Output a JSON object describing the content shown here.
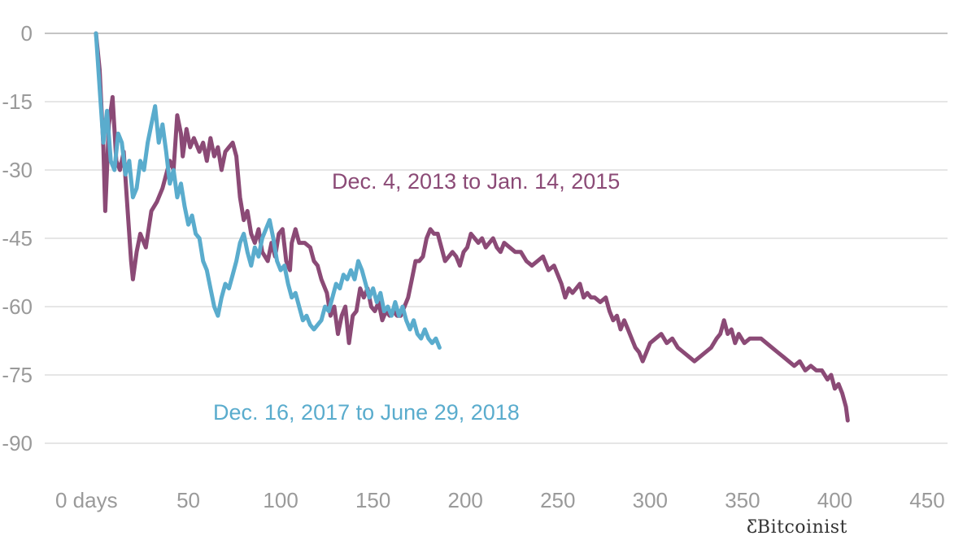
{
  "chart_data": {
    "type": "line",
    "xlim": [
      0,
      450
    ],
    "ylim": [
      -90,
      0
    ],
    "x_ticks": [
      0,
      50,
      100,
      150,
      200,
      250,
      300,
      350,
      400,
      450
    ],
    "x_tick_labels": [
      "0 days",
      "50",
      "100",
      "150",
      "200",
      "250",
      "300",
      "350",
      "400",
      "450"
    ],
    "y_ticks": [
      0,
      -15,
      -30,
      -45,
      -60,
      -75,
      -90
    ],
    "y_tick_labels": [
      "0",
      "-15",
      "-30",
      "-45",
      "-60",
      "-75",
      "-90"
    ],
    "grid": "horizontal",
    "series": [
      {
        "name": "Dec. 4, 2013 to Jan. 14, 2015",
        "color": "#8b4a76",
        "points": [
          [
            0,
            0
          ],
          [
            2,
            -8
          ],
          [
            4,
            -25
          ],
          [
            5,
            -39
          ],
          [
            7,
            -20
          ],
          [
            9,
            -14
          ],
          [
            11,
            -28
          ],
          [
            13,
            -30
          ],
          [
            15,
            -26
          ],
          [
            17,
            -38
          ],
          [
            19,
            -50
          ],
          [
            20,
            -54
          ],
          [
            22,
            -48
          ],
          [
            24,
            -44
          ],
          [
            27,
            -47
          ],
          [
            30,
            -39
          ],
          [
            33,
            -37
          ],
          [
            36,
            -34
          ],
          [
            38,
            -31
          ],
          [
            40,
            -28
          ],
          [
            42,
            -30
          ],
          [
            44,
            -18
          ],
          [
            46,
            -22
          ],
          [
            47,
            -27
          ],
          [
            49,
            -21
          ],
          [
            51,
            -25
          ],
          [
            53,
            -23
          ],
          [
            56,
            -26
          ],
          [
            58,
            -24
          ],
          [
            60,
            -28
          ],
          [
            62,
            -23
          ],
          [
            64,
            -27
          ],
          [
            66,
            -25
          ],
          [
            68,
            -30
          ],
          [
            70,
            -26
          ],
          [
            72,
            -25
          ],
          [
            74,
            -24
          ],
          [
            76,
            -27
          ],
          [
            78,
            -36
          ],
          [
            80,
            -41
          ],
          [
            82,
            -39
          ],
          [
            84,
            -44
          ],
          [
            86,
            -46
          ],
          [
            88,
            -43
          ],
          [
            90,
            -48
          ],
          [
            93,
            -50
          ],
          [
            95,
            -46
          ],
          [
            97,
            -49
          ],
          [
            99,
            -44
          ],
          [
            101,
            -43
          ],
          [
            103,
            -50
          ],
          [
            105,
            -52
          ],
          [
            106,
            -46
          ],
          [
            108,
            -43
          ],
          [
            110,
            -46
          ],
          [
            113,
            -46
          ],
          [
            116,
            -47
          ],
          [
            118,
            -50
          ],
          [
            120,
            -51
          ],
          [
            122,
            -54
          ],
          [
            125,
            -57
          ],
          [
            127,
            -62
          ],
          [
            129,
            -60
          ],
          [
            131,
            -66
          ],
          [
            133,
            -62
          ],
          [
            135,
            -60
          ],
          [
            137,
            -68
          ],
          [
            139,
            -62
          ],
          [
            141,
            -61
          ],
          [
            143,
            -56
          ],
          [
            145,
            -58
          ],
          [
            147,
            -56
          ],
          [
            149,
            -60
          ],
          [
            151,
            -61
          ],
          [
            153,
            -59
          ],
          [
            155,
            -63
          ],
          [
            157,
            -61
          ],
          [
            159,
            -62
          ],
          [
            161,
            -61
          ],
          [
            163,
            -62
          ],
          [
            165,
            -62
          ],
          [
            167,
            -60
          ],
          [
            169,
            -58
          ],
          [
            171,
            -54
          ],
          [
            173,
            -50
          ],
          [
            175,
            -50
          ],
          [
            177,
            -49
          ],
          [
            179,
            -45
          ],
          [
            181,
            -43
          ],
          [
            183,
            -44
          ],
          [
            185,
            -44
          ],
          [
            187,
            -47
          ],
          [
            189,
            -50
          ],
          [
            191,
            -49
          ],
          [
            193,
            -48
          ],
          [
            195,
            -49
          ],
          [
            197,
            -51
          ],
          [
            199,
            -48
          ],
          [
            201,
            -47
          ],
          [
            203,
            -44
          ],
          [
            205,
            -45
          ],
          [
            207,
            -46
          ],
          [
            209,
            -45
          ],
          [
            211,
            -47
          ],
          [
            213,
            -46
          ],
          [
            215,
            -45
          ],
          [
            217,
            -47
          ],
          [
            219,
            -48
          ],
          [
            221,
            -46
          ],
          [
            224,
            -47
          ],
          [
            227,
            -48
          ],
          [
            230,
            -48
          ],
          [
            233,
            -50
          ],
          [
            236,
            -51
          ],
          [
            239,
            -50
          ],
          [
            242,
            -49
          ],
          [
            245,
            -52
          ],
          [
            248,
            -51
          ],
          [
            250,
            -53
          ],
          [
            252,
            -55
          ],
          [
            254,
            -58
          ],
          [
            256,
            -56
          ],
          [
            258,
            -57
          ],
          [
            260,
            -56
          ],
          [
            262,
            -55
          ],
          [
            264,
            -58
          ],
          [
            266,
            -57
          ],
          [
            268,
            -58
          ],
          [
            270,
            -58
          ],
          [
            273,
            -59
          ],
          [
            276,
            -58
          ],
          [
            278,
            -61
          ],
          [
            280,
            -63
          ],
          [
            282,
            -62
          ],
          [
            284,
            -65
          ],
          [
            286,
            -63
          ],
          [
            288,
            -65
          ],
          [
            290,
            -67
          ],
          [
            292,
            -69
          ],
          [
            294,
            -70
          ],
          [
            296,
            -72
          ],
          [
            298,
            -70
          ],
          [
            300,
            -68
          ],
          [
            303,
            -67
          ],
          [
            306,
            -66
          ],
          [
            309,
            -68
          ],
          [
            312,
            -67
          ],
          [
            315,
            -69
          ],
          [
            318,
            -70
          ],
          [
            321,
            -71
          ],
          [
            324,
            -72
          ],
          [
            327,
            -71
          ],
          [
            330,
            -70
          ],
          [
            333,
            -69
          ],
          [
            336,
            -67
          ],
          [
            338,
            -66
          ],
          [
            340,
            -63
          ],
          [
            342,
            -66
          ],
          [
            344,
            -65
          ],
          [
            346,
            -68
          ],
          [
            348,
            -66
          ],
          [
            351,
            -68
          ],
          [
            354,
            -67
          ],
          [
            357,
            -67
          ],
          [
            360,
            -67
          ],
          [
            363,
            -68
          ],
          [
            366,
            -69
          ],
          [
            369,
            -70
          ],
          [
            372,
            -71
          ],
          [
            375,
            -72
          ],
          [
            378,
            -73
          ],
          [
            381,
            -72
          ],
          [
            384,
            -74
          ],
          [
            387,
            -73
          ],
          [
            390,
            -74
          ],
          [
            393,
            -74
          ],
          [
            396,
            -76
          ],
          [
            398,
            -75
          ],
          [
            400,
            -78
          ],
          [
            402,
            -77
          ],
          [
            404,
            -79
          ],
          [
            406,
            -82
          ],
          [
            407,
            -85
          ]
        ]
      },
      {
        "name": "Dec. 16, 2017 to June 29, 2018",
        "color": "#5aaccd",
        "points": [
          [
            0,
            0
          ],
          [
            2,
            -12
          ],
          [
            4,
            -24
          ],
          [
            6,
            -17
          ],
          [
            8,
            -28
          ],
          [
            10,
            -30
          ],
          [
            12,
            -22
          ],
          [
            14,
            -24
          ],
          [
            16,
            -31
          ],
          [
            18,
            -28
          ],
          [
            20,
            -36
          ],
          [
            22,
            -34
          ],
          [
            24,
            -28
          ],
          [
            26,
            -30
          ],
          [
            28,
            -24
          ],
          [
            30,
            -20
          ],
          [
            32,
            -16
          ],
          [
            34,
            -24
          ],
          [
            36,
            -20
          ],
          [
            38,
            -26
          ],
          [
            40,
            -33
          ],
          [
            42,
            -30
          ],
          [
            44,
            -36
          ],
          [
            46,
            -33
          ],
          [
            48,
            -38
          ],
          [
            50,
            -42
          ],
          [
            52,
            -40
          ],
          [
            54,
            -44
          ],
          [
            56,
            -45
          ],
          [
            58,
            -50
          ],
          [
            60,
            -52
          ],
          [
            62,
            -56
          ],
          [
            64,
            -60
          ],
          [
            66,
            -62
          ],
          [
            68,
            -58
          ],
          [
            70,
            -55
          ],
          [
            72,
            -56
          ],
          [
            74,
            -53
          ],
          [
            76,
            -50
          ],
          [
            78,
            -46
          ],
          [
            80,
            -44
          ],
          [
            82,
            -48
          ],
          [
            84,
            -51
          ],
          [
            86,
            -47
          ],
          [
            88,
            -49
          ],
          [
            90,
            -45
          ],
          [
            92,
            -43
          ],
          [
            94,
            -41
          ],
          [
            96,
            -45
          ],
          [
            98,
            -50
          ],
          [
            100,
            -52
          ],
          [
            102,
            -51
          ],
          [
            104,
            -55
          ],
          [
            106,
            -58
          ],
          [
            108,
            -57
          ],
          [
            110,
            -60
          ],
          [
            112,
            -63
          ],
          [
            114,
            -62
          ],
          [
            116,
            -64
          ],
          [
            118,
            -65
          ],
          [
            120,
            -64
          ],
          [
            122,
            -63
          ],
          [
            124,
            -60
          ],
          [
            126,
            -61
          ],
          [
            128,
            -58
          ],
          [
            130,
            -55
          ],
          [
            132,
            -56
          ],
          [
            134,
            -53
          ],
          [
            136,
            -54
          ],
          [
            138,
            -52
          ],
          [
            140,
            -54
          ],
          [
            142,
            -50
          ],
          [
            144,
            -52
          ],
          [
            146,
            -55
          ],
          [
            148,
            -58
          ],
          [
            150,
            -56
          ],
          [
            152,
            -59
          ],
          [
            154,
            -57
          ],
          [
            156,
            -61
          ],
          [
            158,
            -60
          ],
          [
            160,
            -62
          ],
          [
            162,
            -59
          ],
          [
            164,
            -62
          ],
          [
            166,
            -60
          ],
          [
            168,
            -63
          ],
          [
            170,
            -65
          ],
          [
            172,
            -63
          ],
          [
            174,
            -66
          ],
          [
            176,
            -67
          ],
          [
            178,
            -65
          ],
          [
            180,
            -67
          ],
          [
            182,
            -68
          ],
          [
            184,
            -67
          ],
          [
            186,
            -69
          ]
        ]
      }
    ]
  }
}
